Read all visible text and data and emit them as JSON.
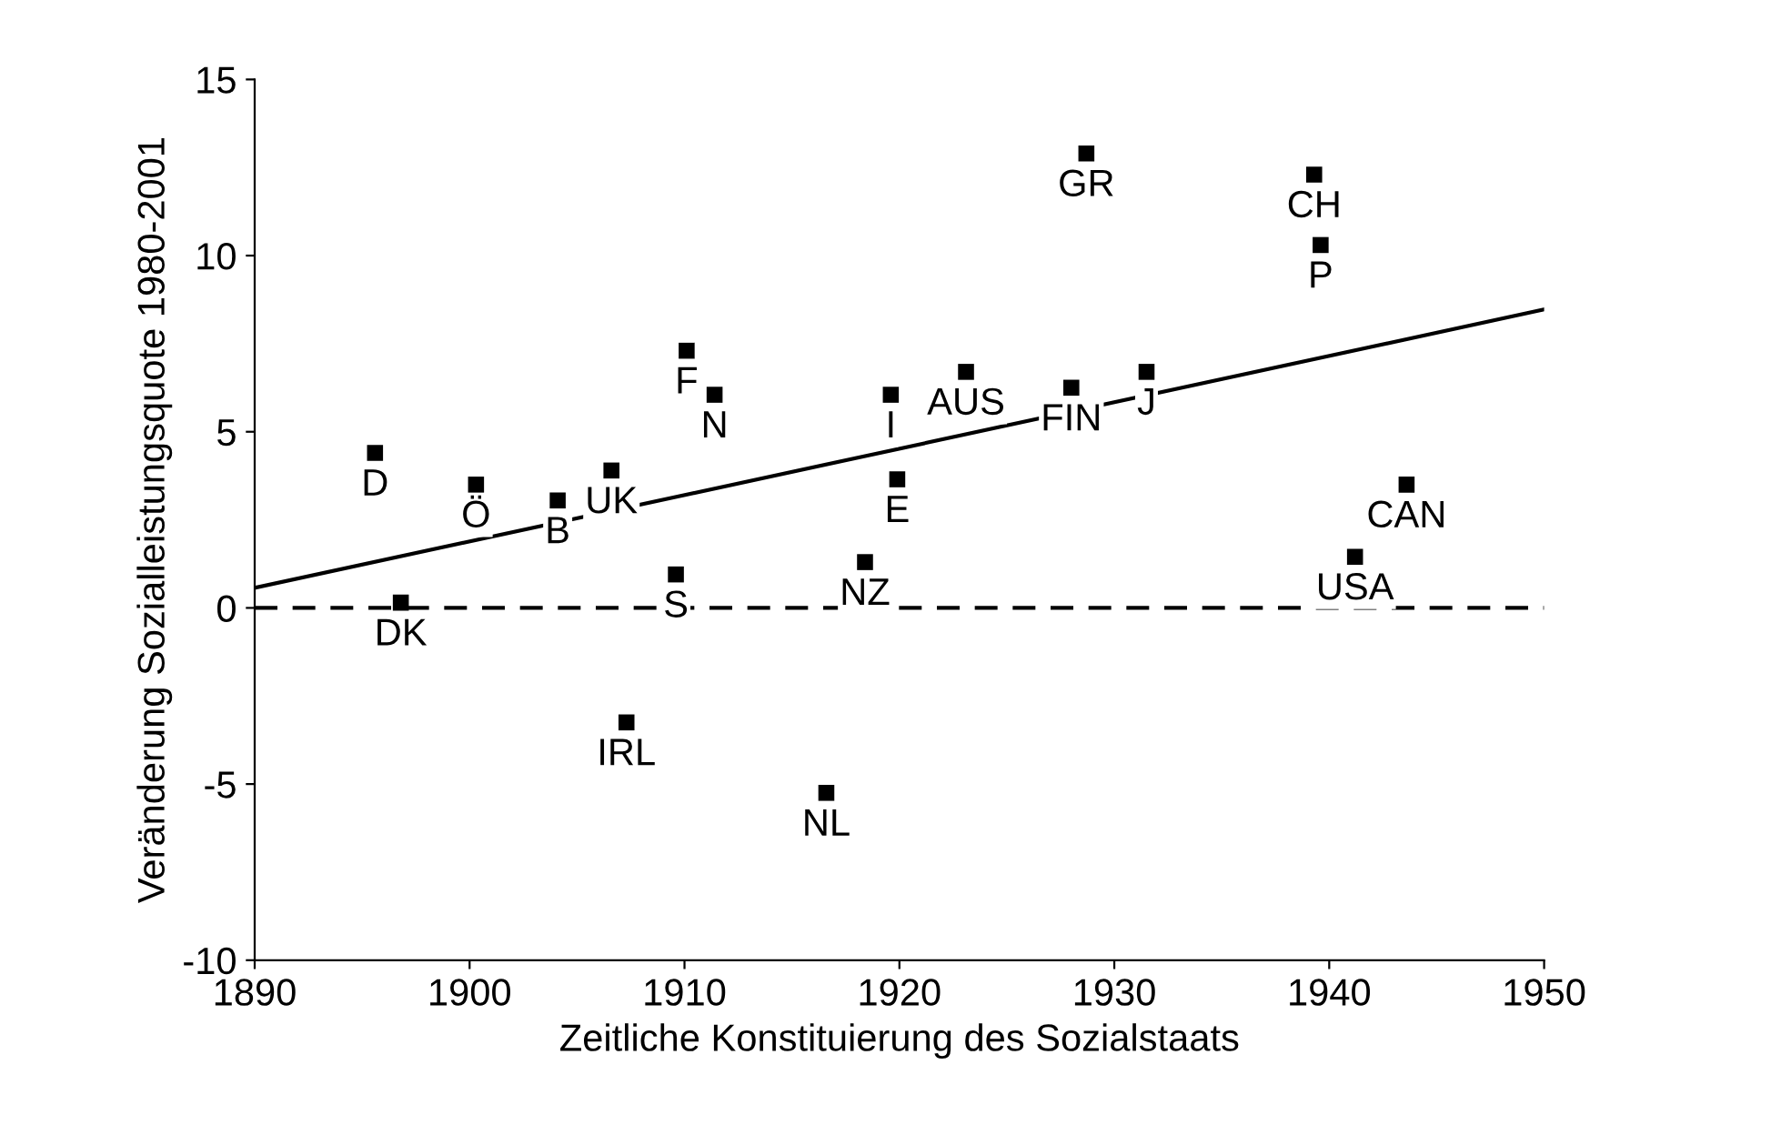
{
  "chart_data": {
    "type": "scatter",
    "xlabel": "Zeitliche Konstituierung des Sozialstaats",
    "ylabel": "Veränderung Sozialleistungsquote 1980-2001",
    "xlim": [
      1890,
      1950
    ],
    "xticks": [
      1890,
      1900,
      1910,
      1920,
      1930,
      1940,
      1950
    ],
    "ylim": [
      -10,
      15
    ],
    "yticks": [
      -10,
      -5,
      0,
      5,
      10,
      15
    ],
    "grid": false,
    "legend": false,
    "series": [
      {
        "color": "#000000",
        "marker": "square",
        "x": [
          1895.6,
          1896.8,
          1900.3,
          1904.1,
          1906.6,
          1907.3,
          1909.6,
          1910.1,
          1911.4,
          1916.6,
          1918.4,
          1919.6,
          1919.9,
          1923.1,
          1928.0,
          1928.7,
          1931.5,
          1939.3,
          1939.6,
          1941.2,
          1943.6
        ],
        "values": [
          4.4,
          0.15,
          3.5,
          3.05,
          3.9,
          -3.25,
          0.95,
          7.3,
          6.05,
          -5.25,
          1.3,
          6.05,
          3.65,
          6.7,
          6.25,
          12.9,
          6.7,
          12.3,
          10.3,
          1.45,
          3.5
        ]
      },
      {
        "type": "line",
        "color": "#000000",
        "line_style": "solid",
        "x": [
          1890,
          1950
        ],
        "values": [
          0.57,
          8.47
        ]
      }
    ],
    "ref_lines": [
      {
        "axis": "y",
        "value": 0,
        "color": "#000000",
        "line_style": "dashed"
      }
    ],
    "annotations": [
      {
        "text": "D",
        "x": 1895.6,
        "y": 4.4
      },
      {
        "text": "DK",
        "x": 1896.8,
        "y": 0.15
      },
      {
        "text": "Ö",
        "x": 1900.3,
        "y": 3.5
      },
      {
        "text": "B",
        "x": 1904.1,
        "y": 3.05
      },
      {
        "text": "UK",
        "x": 1906.6,
        "y": 3.9
      },
      {
        "text": "IRL",
        "x": 1907.3,
        "y": -3.25
      },
      {
        "text": "S",
        "x": 1909.6,
        "y": 0.95
      },
      {
        "text": "F",
        "x": 1910.1,
        "y": 7.3
      },
      {
        "text": "N",
        "x": 1911.4,
        "y": 6.05
      },
      {
        "text": "NL",
        "x": 1916.6,
        "y": -5.25
      },
      {
        "text": "NZ",
        "x": 1918.4,
        "y": 1.3
      },
      {
        "text": "I",
        "x": 1919.6,
        "y": 6.05
      },
      {
        "text": "E",
        "x": 1919.9,
        "y": 3.65
      },
      {
        "text": "AUS",
        "x": 1923.1,
        "y": 6.7
      },
      {
        "text": "FIN",
        "x": 1928.0,
        "y": 6.25
      },
      {
        "text": "GR",
        "x": 1928.7,
        "y": 12.9
      },
      {
        "text": "J",
        "x": 1931.5,
        "y": 6.7
      },
      {
        "text": "CH",
        "x": 1939.3,
        "y": 12.3
      },
      {
        "text": "P",
        "x": 1939.6,
        "y": 10.3
      },
      {
        "text": "USA",
        "x": 1941.2,
        "y": 1.45
      },
      {
        "text": "CAN",
        "x": 1943.6,
        "y": 3.5
      }
    ]
  }
}
